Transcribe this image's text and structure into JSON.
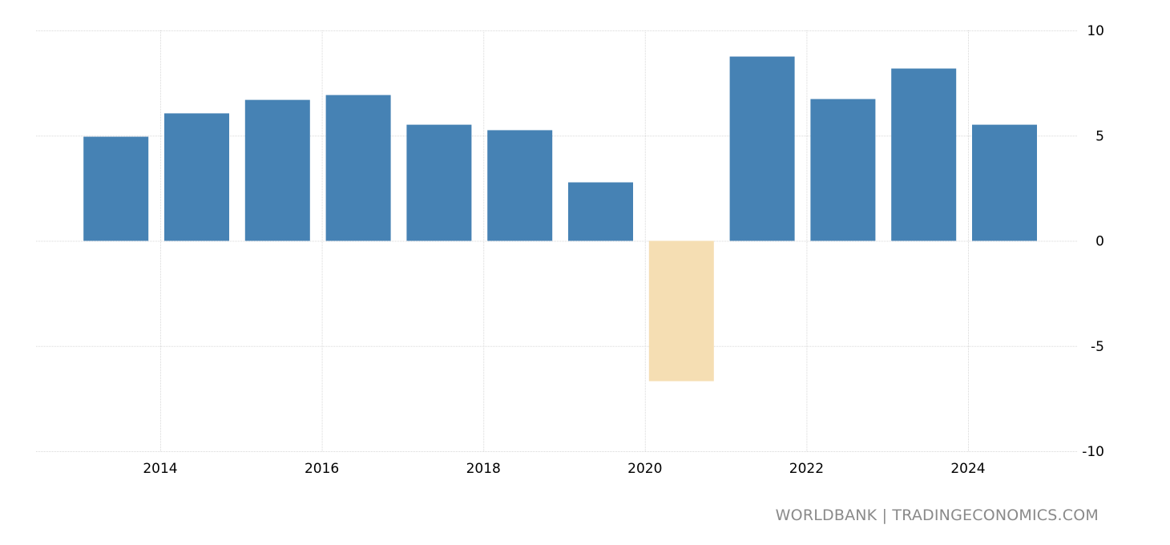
{
  "chart_data": {
    "type": "bar",
    "categories": [
      "2013",
      "2014",
      "2015",
      "2016",
      "2017",
      "2018",
      "2019",
      "2020",
      "2021",
      "2022",
      "2023",
      "2024"
    ],
    "values": [
      4.95,
      6.06,
      6.7,
      6.93,
      5.52,
      5.26,
      2.78,
      -6.67,
      8.76,
      6.74,
      8.19,
      5.52
    ],
    "x_tick_labels": [
      "2014",
      "2016",
      "2018",
      "2020",
      "2022",
      "2024"
    ],
    "y_tick_labels": [
      "10",
      "5",
      "0",
      "-5",
      "-10"
    ],
    "ylim": [
      -10,
      10
    ],
    "grid": true,
    "colors": {
      "positive": "#4682b4",
      "negative": "#f5deb3"
    },
    "title": "",
    "xlabel": "",
    "ylabel": ""
  },
  "footer": "WORLDBANK | TRADINGECONOMICS.COM"
}
